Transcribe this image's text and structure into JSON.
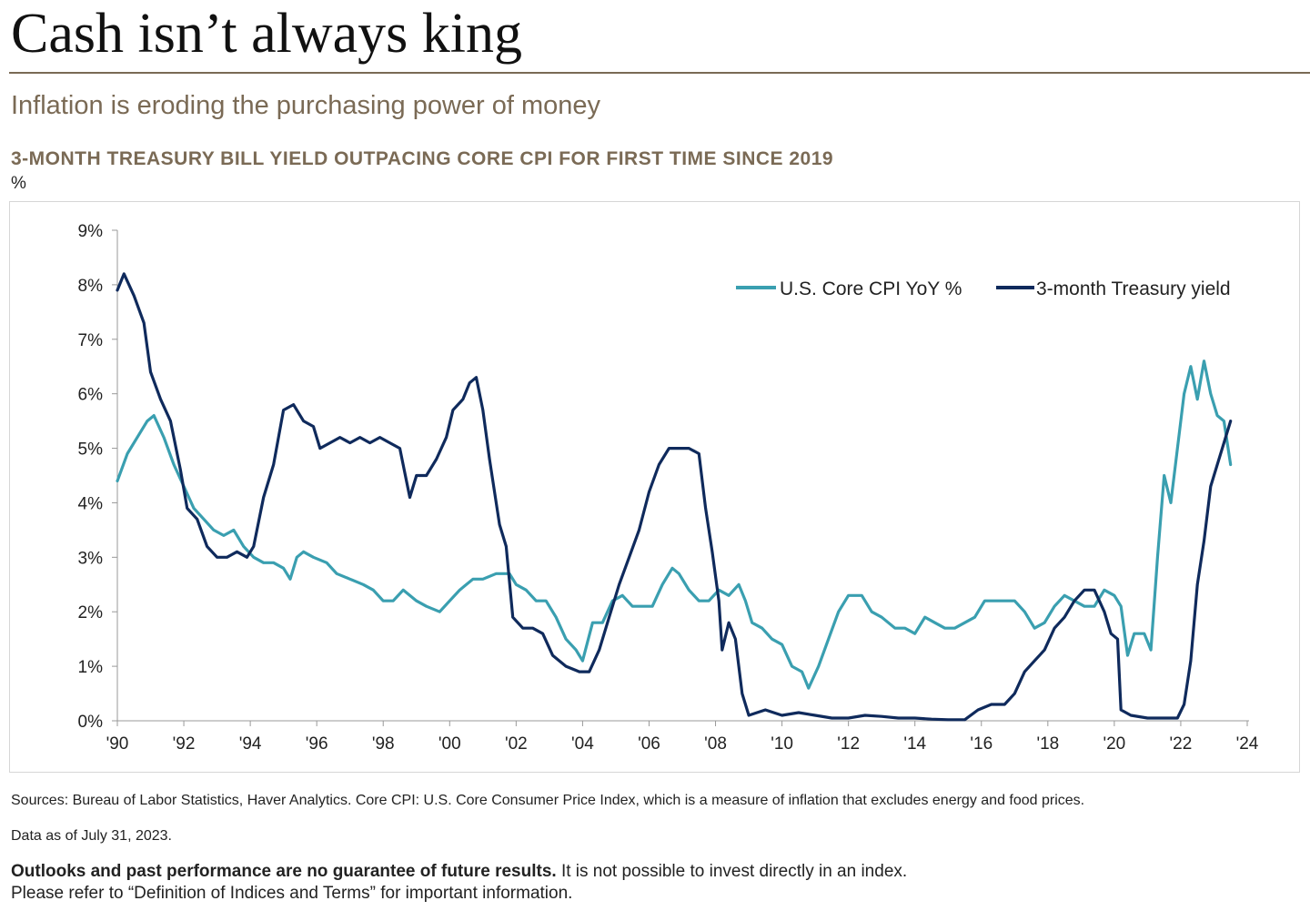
{
  "header": {
    "title": "Cash isn’t always king",
    "subtitle": "Inflation is eroding the purchasing power of money"
  },
  "footer": {
    "sources": "Sources: Bureau of Labor Statistics, Haver Analytics. Core CPI: U.S. Core Consumer Price Index, which is a measure of inflation that excludes energy and food prices.",
    "as_of": "Data as of July 31, 2023.",
    "disclaimer_bold": "Outlooks and past performance are no guarantee of future results.",
    "disclaimer_rest": " It is not possible to invest directly in an index.",
    "disclaimer_line2": "Please refer to “Definition of Indices and Terms” for important information."
  },
  "colors": {
    "core_cpi": "#3a9fb0",
    "treasury": "#0f2a5c",
    "axis": "#999999",
    "accent": "#7a6a55"
  },
  "chart_data": {
    "type": "line",
    "title": "3-MONTH TREASURY BILL YIELD OUTPACING CORE CPI FOR FIRST TIME SINCE 2019",
    "ylabel": "%",
    "xlabel": "",
    "xlim": [
      1990,
      2024
    ],
    "ylim": [
      0,
      9
    ],
    "y_ticks": [
      0,
      1,
      2,
      3,
      4,
      5,
      6,
      7,
      8,
      9
    ],
    "y_tick_labels": [
      "0%",
      "1%",
      "2%",
      "3%",
      "4%",
      "5%",
      "6%",
      "7%",
      "8%",
      "9%"
    ],
    "x_ticks": [
      1990,
      1992,
      1994,
      1996,
      1998,
      2000,
      2002,
      2004,
      2006,
      2008,
      2010,
      2012,
      2014,
      2016,
      2018,
      2020,
      2022,
      2024
    ],
    "x_tick_labels": [
      "'90",
      "'92",
      "'94",
      "'96",
      "'98",
      "'00",
      "'02",
      "'04",
      "'06",
      "'08",
      "'10",
      "'12",
      "'14",
      "'16",
      "'18",
      "'20",
      "'22",
      "'24"
    ],
    "legend_position": "top-right",
    "series": [
      {
        "name": "U.S. Core CPI YoY %",
        "color": "#3a9fb0",
        "points": [
          [
            1990.0,
            4.4
          ],
          [
            1990.3,
            4.9
          ],
          [
            1990.6,
            5.2
          ],
          [
            1990.9,
            5.5
          ],
          [
            1991.1,
            5.6
          ],
          [
            1991.4,
            5.2
          ],
          [
            1991.7,
            4.7
          ],
          [
            1992.0,
            4.3
          ],
          [
            1992.3,
            3.9
          ],
          [
            1992.6,
            3.7
          ],
          [
            1992.9,
            3.5
          ],
          [
            1993.2,
            3.4
          ],
          [
            1993.5,
            3.5
          ],
          [
            1993.8,
            3.2
          ],
          [
            1994.1,
            3.0
          ],
          [
            1994.4,
            2.9
          ],
          [
            1994.7,
            2.9
          ],
          [
            1995.0,
            2.8
          ],
          [
            1995.2,
            2.6
          ],
          [
            1995.4,
            3.0
          ],
          [
            1995.6,
            3.1
          ],
          [
            1995.9,
            3.0
          ],
          [
            1996.3,
            2.9
          ],
          [
            1996.6,
            2.7
          ],
          [
            1997.0,
            2.6
          ],
          [
            1997.4,
            2.5
          ],
          [
            1997.7,
            2.4
          ],
          [
            1998.0,
            2.2
          ],
          [
            1998.3,
            2.2
          ],
          [
            1998.6,
            2.4
          ],
          [
            1999.0,
            2.2
          ],
          [
            1999.3,
            2.1
          ],
          [
            1999.7,
            2.0
          ],
          [
            2000.0,
            2.2
          ],
          [
            2000.3,
            2.4
          ],
          [
            2000.7,
            2.6
          ],
          [
            2001.0,
            2.6
          ],
          [
            2001.4,
            2.7
          ],
          [
            2001.8,
            2.7
          ],
          [
            2002.0,
            2.5
          ],
          [
            2002.3,
            2.4
          ],
          [
            2002.6,
            2.2
          ],
          [
            2002.9,
            2.2
          ],
          [
            2003.2,
            1.9
          ],
          [
            2003.5,
            1.5
          ],
          [
            2003.8,
            1.3
          ],
          [
            2004.0,
            1.1
          ],
          [
            2004.3,
            1.8
          ],
          [
            2004.6,
            1.8
          ],
          [
            2004.9,
            2.2
          ],
          [
            2005.2,
            2.3
          ],
          [
            2005.5,
            2.1
          ],
          [
            2005.8,
            2.1
          ],
          [
            2006.1,
            2.1
          ],
          [
            2006.4,
            2.5
          ],
          [
            2006.7,
            2.8
          ],
          [
            2006.9,
            2.7
          ],
          [
            2007.2,
            2.4
          ],
          [
            2007.5,
            2.2
          ],
          [
            2007.8,
            2.2
          ],
          [
            2008.1,
            2.4
          ],
          [
            2008.4,
            2.3
          ],
          [
            2008.7,
            2.5
          ],
          [
            2008.9,
            2.2
          ],
          [
            2009.1,
            1.8
          ],
          [
            2009.4,
            1.7
          ],
          [
            2009.7,
            1.5
          ],
          [
            2010.0,
            1.4
          ],
          [
            2010.3,
            1.0
          ],
          [
            2010.6,
            0.9
          ],
          [
            2010.8,
            0.6
          ],
          [
            2011.1,
            1.0
          ],
          [
            2011.4,
            1.5
          ],
          [
            2011.7,
            2.0
          ],
          [
            2012.0,
            2.3
          ],
          [
            2012.4,
            2.3
          ],
          [
            2012.7,
            2.0
          ],
          [
            2013.0,
            1.9
          ],
          [
            2013.4,
            1.7
          ],
          [
            2013.7,
            1.7
          ],
          [
            2014.0,
            1.6
          ],
          [
            2014.3,
            1.9
          ],
          [
            2014.6,
            1.8
          ],
          [
            2014.9,
            1.7
          ],
          [
            2015.2,
            1.7
          ],
          [
            2015.5,
            1.8
          ],
          [
            2015.8,
            1.9
          ],
          [
            2016.1,
            2.2
          ],
          [
            2016.4,
            2.2
          ],
          [
            2016.7,
            2.2
          ],
          [
            2017.0,
            2.2
          ],
          [
            2017.3,
            2.0
          ],
          [
            2017.6,
            1.7
          ],
          [
            2017.9,
            1.8
          ],
          [
            2018.2,
            2.1
          ],
          [
            2018.5,
            2.3
          ],
          [
            2018.8,
            2.2
          ],
          [
            2019.1,
            2.1
          ],
          [
            2019.4,
            2.1
          ],
          [
            2019.7,
            2.4
          ],
          [
            2020.0,
            2.3
          ],
          [
            2020.2,
            2.1
          ],
          [
            2020.4,
            1.2
          ],
          [
            2020.6,
            1.6
          ],
          [
            2020.9,
            1.6
          ],
          [
            2021.1,
            1.3
          ],
          [
            2021.3,
            3.0
          ],
          [
            2021.5,
            4.5
          ],
          [
            2021.7,
            4.0
          ],
          [
            2021.9,
            5.0
          ],
          [
            2022.1,
            6.0
          ],
          [
            2022.3,
            6.5
          ],
          [
            2022.5,
            5.9
          ],
          [
            2022.7,
            6.6
          ],
          [
            2022.9,
            6.0
          ],
          [
            2023.1,
            5.6
          ],
          [
            2023.3,
            5.5
          ],
          [
            2023.5,
            4.7
          ]
        ]
      },
      {
        "name": "3-month Treasury yield",
        "color": "#0f2a5c",
        "points": [
          [
            1990.0,
            7.9
          ],
          [
            1990.2,
            8.2
          ],
          [
            1990.5,
            7.8
          ],
          [
            1990.8,
            7.3
          ],
          [
            1991.0,
            6.4
          ],
          [
            1991.3,
            5.9
          ],
          [
            1991.6,
            5.5
          ],
          [
            1991.9,
            4.6
          ],
          [
            1992.1,
            3.9
          ],
          [
            1992.4,
            3.7
          ],
          [
            1992.7,
            3.2
          ],
          [
            1993.0,
            3.0
          ],
          [
            1993.3,
            3.0
          ],
          [
            1993.6,
            3.1
          ],
          [
            1993.9,
            3.0
          ],
          [
            1994.1,
            3.2
          ],
          [
            1994.4,
            4.1
          ],
          [
            1994.7,
            4.7
          ],
          [
            1995.0,
            5.7
          ],
          [
            1995.3,
            5.8
          ],
          [
            1995.6,
            5.5
          ],
          [
            1995.9,
            5.4
          ],
          [
            1996.1,
            5.0
          ],
          [
            1996.4,
            5.1
          ],
          [
            1996.7,
            5.2
          ],
          [
            1997.0,
            5.1
          ],
          [
            1997.3,
            5.2
          ],
          [
            1997.6,
            5.1
          ],
          [
            1997.9,
            5.2
          ],
          [
            1998.2,
            5.1
          ],
          [
            1998.5,
            5.0
          ],
          [
            1998.7,
            4.4
          ],
          [
            1998.8,
            4.1
          ],
          [
            1999.0,
            4.5
          ],
          [
            1999.3,
            4.5
          ],
          [
            1999.6,
            4.8
          ],
          [
            1999.9,
            5.2
          ],
          [
            2000.1,
            5.7
          ],
          [
            2000.4,
            5.9
          ],
          [
            2000.6,
            6.2
          ],
          [
            2000.8,
            6.3
          ],
          [
            2001.0,
            5.7
          ],
          [
            2001.2,
            4.8
          ],
          [
            2001.5,
            3.6
          ],
          [
            2001.7,
            3.2
          ],
          [
            2001.9,
            1.9
          ],
          [
            2002.2,
            1.7
          ],
          [
            2002.5,
            1.7
          ],
          [
            2002.8,
            1.6
          ],
          [
            2003.1,
            1.2
          ],
          [
            2003.5,
            1.0
          ],
          [
            2003.9,
            0.9
          ],
          [
            2004.2,
            0.9
          ],
          [
            2004.5,
            1.3
          ],
          [
            2004.8,
            1.9
          ],
          [
            2005.1,
            2.5
          ],
          [
            2005.4,
            3.0
          ],
          [
            2005.7,
            3.5
          ],
          [
            2006.0,
            4.2
          ],
          [
            2006.3,
            4.7
          ],
          [
            2006.6,
            5.0
          ],
          [
            2006.9,
            5.0
          ],
          [
            2007.2,
            5.0
          ],
          [
            2007.5,
            4.9
          ],
          [
            2007.7,
            3.9
          ],
          [
            2007.9,
            3.1
          ],
          [
            2008.1,
            2.2
          ],
          [
            2008.2,
            1.3
          ],
          [
            2008.4,
            1.8
          ],
          [
            2008.6,
            1.5
          ],
          [
            2008.8,
            0.5
          ],
          [
            2009.0,
            0.1
          ],
          [
            2009.5,
            0.2
          ],
          [
            2010.0,
            0.1
          ],
          [
            2010.5,
            0.15
          ],
          [
            2011.0,
            0.1
          ],
          [
            2011.5,
            0.05
          ],
          [
            2012.0,
            0.05
          ],
          [
            2012.5,
            0.1
          ],
          [
            2013.0,
            0.08
          ],
          [
            2013.5,
            0.05
          ],
          [
            2014.0,
            0.05
          ],
          [
            2014.5,
            0.03
          ],
          [
            2015.0,
            0.02
          ],
          [
            2015.5,
            0.02
          ],
          [
            2015.9,
            0.2
          ],
          [
            2016.3,
            0.3
          ],
          [
            2016.7,
            0.3
          ],
          [
            2017.0,
            0.5
          ],
          [
            2017.3,
            0.9
          ],
          [
            2017.6,
            1.1
          ],
          [
            2017.9,
            1.3
          ],
          [
            2018.2,
            1.7
          ],
          [
            2018.5,
            1.9
          ],
          [
            2018.8,
            2.2
          ],
          [
            2019.1,
            2.4
          ],
          [
            2019.4,
            2.4
          ],
          [
            2019.7,
            2.0
          ],
          [
            2019.9,
            1.6
          ],
          [
            2020.1,
            1.5
          ],
          [
            2020.2,
            0.2
          ],
          [
            2020.5,
            0.1
          ],
          [
            2021.0,
            0.05
          ],
          [
            2021.5,
            0.05
          ],
          [
            2021.9,
            0.05
          ],
          [
            2022.1,
            0.3
          ],
          [
            2022.3,
            1.1
          ],
          [
            2022.5,
            2.5
          ],
          [
            2022.7,
            3.3
          ],
          [
            2022.9,
            4.3
          ],
          [
            2023.1,
            4.7
          ],
          [
            2023.3,
            5.1
          ],
          [
            2023.5,
            5.5
          ]
        ]
      }
    ]
  }
}
